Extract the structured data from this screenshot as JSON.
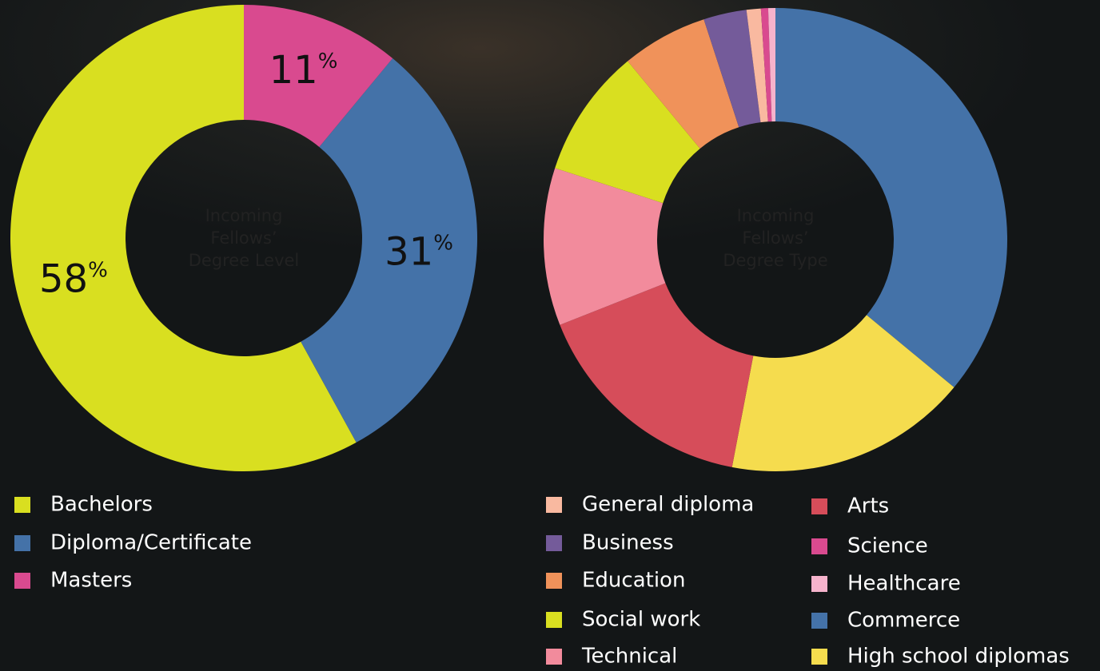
{
  "chart_data": [
    {
      "type": "donut",
      "center_label": "Incoming Fellows’ Degree Level",
      "categories": [
        "Bachelors",
        "Diploma/Certificate",
        "Masters"
      ],
      "values": [
        58,
        31,
        11
      ],
      "value_labels": [
        "58%",
        "31%",
        "11%"
      ],
      "colors": [
        "#d9df20",
        "#4472a8",
        "#d94a8f"
      ]
    },
    {
      "type": "donut",
      "center_label": "Incoming Fellows’ Degree Type",
      "categories": [
        "Commerce",
        "High school diplomas",
        "Arts",
        "Technical",
        "Social work",
        "Education",
        "Business",
        "General diploma",
        "Science",
        "Healthcare"
      ],
      "values": [
        36,
        17,
        16,
        11,
        9,
        6,
        3,
        1,
        0.5,
        0.5
      ],
      "colors": [
        "#4472a8",
        "#f5dc4e",
        "#d64d5a",
        "#f28b9c",
        "#d9df20",
        "#f0925a",
        "#745b9a",
        "#f9b9a0",
        "#d94a8f",
        "#f6b3cc"
      ]
    }
  ]
}
